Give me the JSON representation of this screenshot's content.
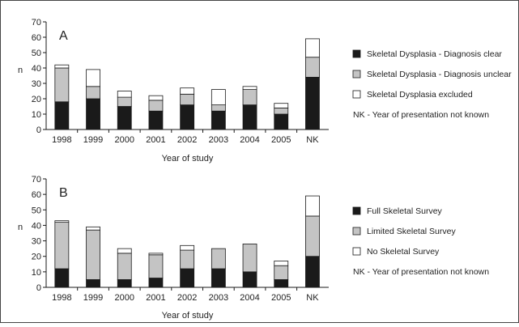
{
  "colors": {
    "clear_or_full": "#1a1a1a",
    "unclear_or_limited": "#c4c4c4",
    "excluded_or_none": "#ffffff",
    "stroke": "#1a1a1a",
    "frame": "#444444"
  },
  "chart_data": [
    {
      "type": "bar",
      "stacked": true,
      "panel": "A",
      "categories": [
        "1998",
        "1999",
        "2000",
        "2001",
        "2002",
        "2003",
        "2004",
        "2005",
        "NK"
      ],
      "series": [
        {
          "name": "Skeletal Dysplasia - Diagnosis clear",
          "values": [
            18,
            20,
            15,
            12,
            16,
            12,
            16,
            10,
            34
          ],
          "color": "#1a1a1a"
        },
        {
          "name": "Skeletal Dysplasia - Diagnosis unclear",
          "values": [
            22,
            8,
            6,
            7,
            7,
            4,
            10,
            4,
            13
          ],
          "color": "#c4c4c4"
        },
        {
          "name": "Skeletal Dysplasia excluded",
          "values": [
            2,
            11,
            4,
            3,
            4,
            10,
            2,
            3,
            12
          ],
          "color": "#ffffff"
        }
      ],
      "note": "NK - Year of presentation not known",
      "xlabel": "Year of study",
      "ylabel": "n",
      "ylim": [
        0,
        70
      ],
      "yticks": [
        "0",
        "10",
        "20",
        "30",
        "40",
        "50",
        "60",
        "70"
      ],
      "grid": false,
      "legend": "right"
    },
    {
      "type": "bar",
      "stacked": true,
      "panel": "B",
      "categories": [
        "1998",
        "1999",
        "2000",
        "2001",
        "2002",
        "2003",
        "2004",
        "2005",
        "NK"
      ],
      "series": [
        {
          "name": "Full Skeletal Survey",
          "values": [
            12,
            5,
            5,
            6,
            12,
            12,
            10,
            5,
            20
          ],
          "color": "#1a1a1a"
        },
        {
          "name": "Limited Skeletal Survey",
          "values": [
            30,
            32,
            17,
            15,
            12,
            13,
            18,
            9,
            26
          ],
          "color": "#c4c4c4"
        },
        {
          "name": "No Skeletal Survey",
          "values": [
            1,
            2,
            3,
            1,
            3,
            0,
            0,
            3,
            13
          ],
          "color": "#ffffff"
        }
      ],
      "note": "NK - Year of presentation not known",
      "xlabel": "Year of study",
      "ylabel": "n",
      "ylim": [
        0,
        70
      ],
      "yticks": [
        "0",
        "10",
        "20",
        "30",
        "40",
        "50",
        "60",
        "70"
      ],
      "grid": false,
      "legend": "right"
    }
  ]
}
